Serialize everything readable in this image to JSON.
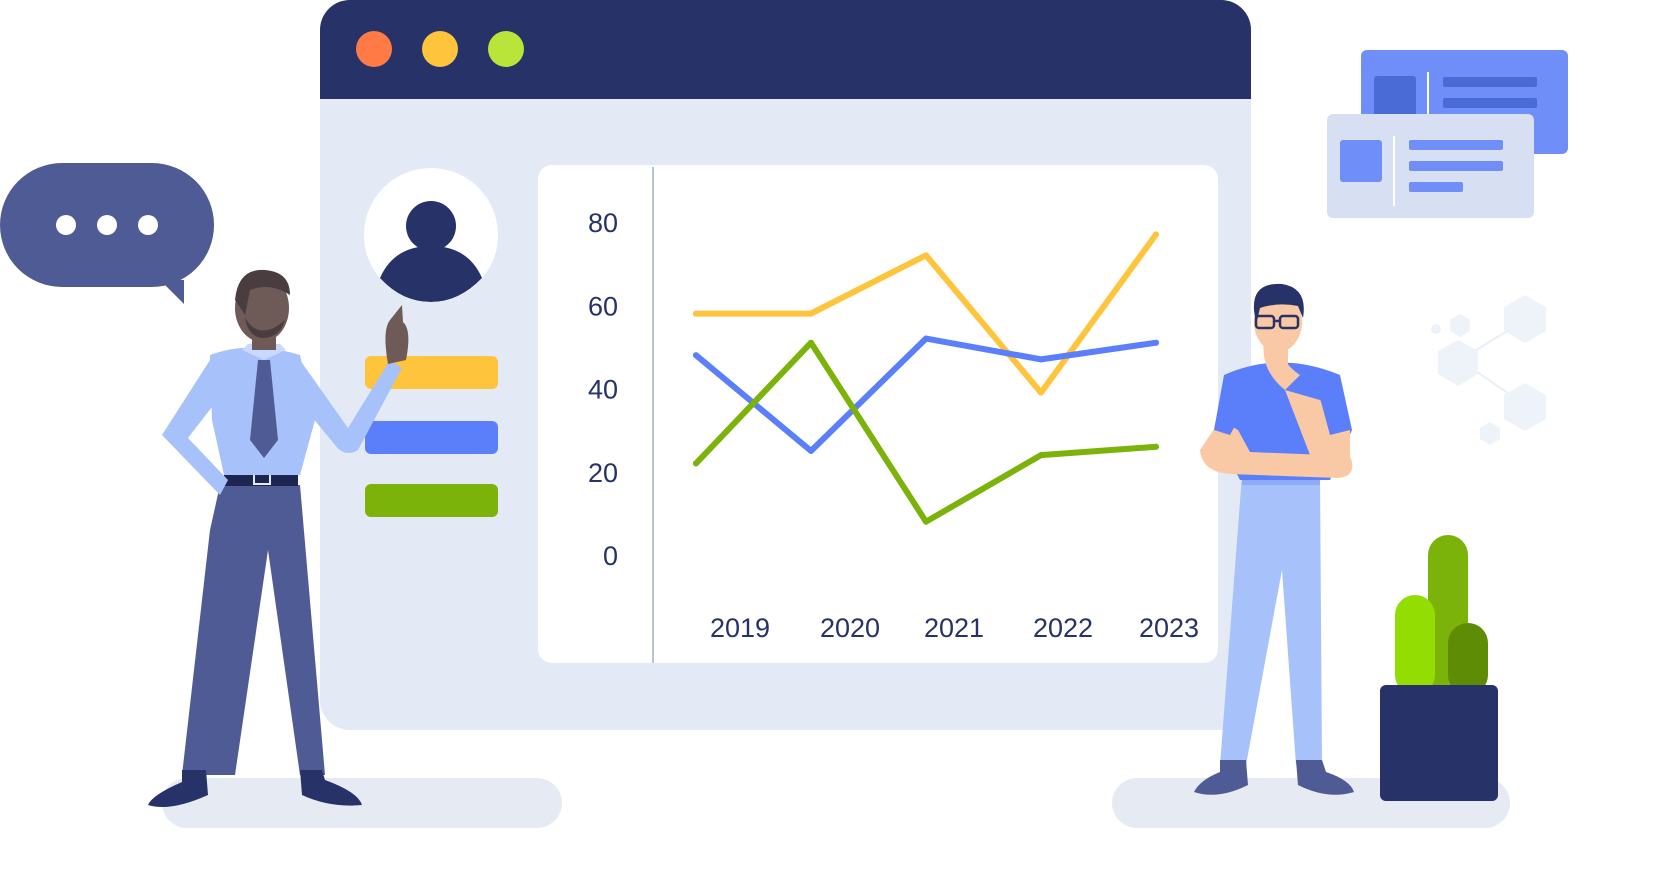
{
  "window": {
    "controls": [
      {
        "name": "close",
        "color": "#ff7a45"
      },
      {
        "name": "minimize",
        "color": "#fec43c"
      },
      {
        "name": "maximize",
        "color": "#b9e43a"
      }
    ]
  },
  "sidebar": {
    "avatar_icon": "user-icon",
    "bars": [
      {
        "name": "legend-bar-yellow",
        "color": "#fec43c"
      },
      {
        "name": "legend-bar-blue",
        "color": "#5b7ffb"
      },
      {
        "name": "legend-bar-green",
        "color": "#7cb30a"
      }
    ]
  },
  "chat": {
    "icon": "ellipsis-icon",
    "dots": 3
  },
  "chart_data": {
    "type": "line",
    "x": [
      "2019",
      "2020",
      "2021",
      "2022",
      "2023"
    ],
    "yticks": [
      "0",
      "20",
      "40",
      "60",
      "80"
    ],
    "ylim": [
      0,
      80
    ],
    "grid": false,
    "series": [
      {
        "color": "#fec43c",
        "values": [
          58,
          58,
          72,
          39,
          77
        ]
      },
      {
        "color": "#5b7ffb",
        "values": [
          48,
          25,
          52,
          47,
          51
        ]
      },
      {
        "color": "#7cb30a",
        "values": [
          22,
          51,
          8,
          24,
          26
        ]
      }
    ]
  }
}
